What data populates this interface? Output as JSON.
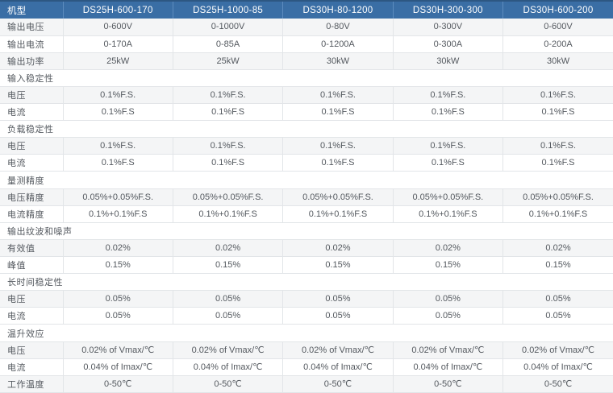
{
  "colors": {
    "header_bg": "#3a6ea5",
    "header_border": "#2d5782",
    "header_divider": "#5d8cbe",
    "row_shade": "#f4f5f6",
    "grid_line": "#e2e5e8",
    "cell_text": "#54595f",
    "header_text": "#ffffff"
  },
  "table": {
    "header": {
      "label": "机型",
      "models": [
        "DS25H-600-170",
        "DS25H-1000-85",
        "DS30H-80-1200",
        "DS30H-300-300",
        "DS30H-600-200"
      ]
    },
    "rows": [
      {
        "type": "data",
        "label": "输出电压",
        "values": [
          "0-600V",
          "0-1000V",
          "0-80V",
          "0-300V",
          "0-600V"
        ]
      },
      {
        "type": "data",
        "label": "输出电流",
        "values": [
          "0-170A",
          "0-85A",
          "0-1200A",
          "0-300A",
          "0-200A"
        ]
      },
      {
        "type": "data",
        "label": "输出功率",
        "values": [
          "25kW",
          "25kW",
          "30kW",
          "30kW",
          "30kW"
        ]
      },
      {
        "type": "section",
        "label": "输入稳定性"
      },
      {
        "type": "data",
        "label": "电压",
        "values": [
          "0.1%F.S.",
          "0.1%F.S.",
          "0.1%F.S.",
          "0.1%F.S.",
          "0.1%F.S."
        ]
      },
      {
        "type": "data",
        "label": "电流",
        "values": [
          "0.1%F.S",
          "0.1%F.S",
          "0.1%F.S",
          "0.1%F.S",
          "0.1%F.S"
        ]
      },
      {
        "type": "section",
        "label": "负载稳定性"
      },
      {
        "type": "data",
        "label": "电压",
        "values": [
          "0.1%F.S.",
          "0.1%F.S.",
          "0.1%F.S.",
          "0.1%F.S.",
          "0.1%F.S."
        ]
      },
      {
        "type": "data",
        "label": "电流",
        "values": [
          "0.1%F.S",
          "0.1%F.S",
          "0.1%F.S",
          "0.1%F.S",
          "0.1%F.S"
        ]
      },
      {
        "type": "section",
        "label": "量测精度"
      },
      {
        "type": "data",
        "label": "电压精度",
        "values": [
          "0.05%+0.05%F.S.",
          "0.05%+0.05%F.S.",
          "0.05%+0.05%F.S.",
          "0.05%+0.05%F.S.",
          "0.05%+0.05%F.S."
        ]
      },
      {
        "type": "data",
        "label": "电流精度",
        "values": [
          "0.1%+0.1%F.S",
          "0.1%+0.1%F.S",
          "0.1%+0.1%F.S",
          "0.1%+0.1%F.S",
          "0.1%+0.1%F.S"
        ]
      },
      {
        "type": "section",
        "label": "输出纹波和噪声"
      },
      {
        "type": "data",
        "label": "有效值",
        "values": [
          "0.02%",
          "0.02%",
          "0.02%",
          "0.02%",
          "0.02%"
        ]
      },
      {
        "type": "data",
        "label": "峰值",
        "values": [
          "0.15%",
          "0.15%",
          "0.15%",
          "0.15%",
          "0.15%"
        ]
      },
      {
        "type": "section",
        "label": "长时间稳定性"
      },
      {
        "type": "data",
        "label": "电压",
        "values": [
          "0.05%",
          "0.05%",
          "0.05%",
          "0.05%",
          "0.05%"
        ]
      },
      {
        "type": "data",
        "label": "电流",
        "values": [
          "0.05%",
          "0.05%",
          "0.05%",
          "0.05%",
          "0.05%"
        ]
      },
      {
        "type": "section",
        "label": "温升效应"
      },
      {
        "type": "data",
        "label": "电压",
        "values": [
          "0.02% of Vmax/℃",
          "0.02% of Vmax/℃",
          "0.02% of Vmax/℃",
          "0.02% of Vmax/℃",
          "0.02% of Vmax/℃"
        ]
      },
      {
        "type": "data",
        "label": "电流",
        "values": [
          "0.04% of Imax/℃",
          "0.04% of Imax/℃",
          "0.04% of Imax/℃",
          "0.04% of Imax/℃",
          "0.04% of Imax/℃"
        ]
      },
      {
        "type": "data",
        "label": "工作温度",
        "values": [
          "0-50℃",
          "0-50℃",
          "0-50℃",
          "0-50℃",
          "0-50℃"
        ]
      }
    ]
  }
}
